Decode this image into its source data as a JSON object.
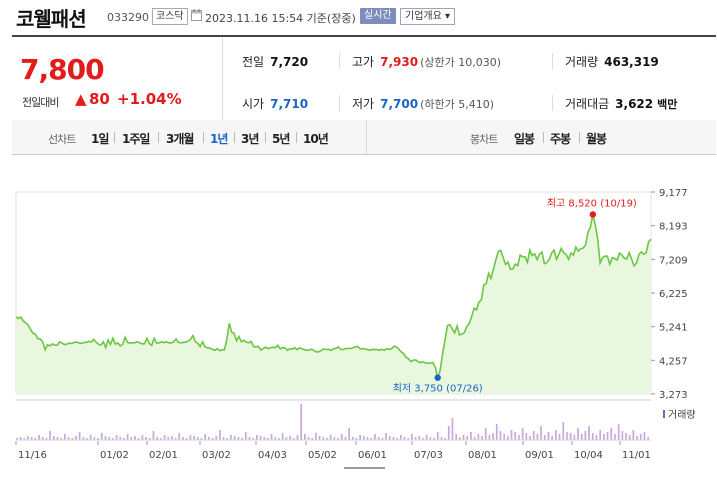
{
  "header": {
    "company_name": "코웰패션",
    "code": "033290",
    "market": "코스닥",
    "calendar_icon": "calendar-icon",
    "datetime": "2023.11.16 15:54 기준(장중)",
    "realtime_label": "실시간",
    "company_info_label": "기업개요 ▾"
  },
  "quote": {
    "price": "7,800",
    "change_label": "전일대비",
    "change_arrow": "▲",
    "change_value": "80",
    "change_rate": "+1.04%",
    "prev_close_label": "전일",
    "prev_close": "7,720",
    "high_label": "고가",
    "high": "7,930",
    "upper_limit": "(상한가 10,030)",
    "volume_label": "거래량",
    "volume": "463,319",
    "open_label": "시가",
    "open": "7,710",
    "low_label": "저가",
    "low": "7,700",
    "lower_limit": "(하한가 5,410)",
    "amount_label": "거래대금",
    "amount": "3,622",
    "amount_unit": "백만"
  },
  "periods": {
    "line_title": "선차트",
    "line_items": [
      "1일",
      "1주일",
      "3개월",
      "1년",
      "3년",
      "5년",
      "10년"
    ],
    "active": "1년",
    "candle_title": "봉차트",
    "candle_items": [
      "일봉",
      "주봉",
      "월봉"
    ]
  },
  "colors": {
    "up": "#e31b1b",
    "down": "#1a64c8",
    "line": "#6cc644",
    "area": "#e9f7df",
    "volume": "#c9a8d8"
  },
  "chart_data": {
    "type": "area",
    "y_ticks": [
      "9,177",
      "8,193",
      "7,209",
      "6,225",
      "5,241",
      "4,257",
      "3,273"
    ],
    "ylim": [
      3273,
      9177
    ],
    "x_ticks": [
      "11/16",
      "01/02",
      "02/01",
      "03/02",
      "04/03",
      "05/02",
      "06/01",
      "07/03",
      "08/01",
      "09/01",
      "10/04",
      "11/01"
    ],
    "max_label": "최고 8,520 (10/19)",
    "min_label": "최저 3,750 (07/26)",
    "volume_legend": "거래량",
    "values": [
      5530,
      5480,
      5520,
      5410,
      5350,
      5290,
      5160,
      5050,
      5020,
      4890,
      4880,
      4800,
      4570,
      4710,
      4680,
      4740,
      4700,
      4700,
      4800,
      4760,
      4720,
      4730,
      4760,
      4750,
      4780,
      4790,
      4770,
      4750,
      4780,
      4780,
      4810,
      4790,
      4870,
      4790,
      4730,
      4700,
      4800,
      4630,
      4850,
      4720,
      4900,
      4730,
      4770,
      4680,
      4720,
      4930,
      4780,
      4760,
      4770,
      4770,
      4800,
      4770,
      4740,
      4740,
      4900,
      4750,
      4690,
      4900,
      4760,
      4770,
      4800,
      4770,
      4800,
      4770,
      4770,
      4790,
      4880,
      4780,
      4770,
      4780,
      4790,
      4820,
      4870,
      4980,
      4800,
      4750,
      4660,
      4800,
      4650,
      4620,
      4620,
      4580,
      4550,
      4600,
      4540,
      4570,
      4560,
      4880,
      5340,
      5080,
      5040,
      4830,
      4950,
      4800,
      4840,
      4790,
      4770,
      4810,
      4660,
      4640,
      4670,
      4560,
      4600,
      4640,
      4600,
      4620,
      4640,
      4620,
      4700,
      4590,
      4630,
      4620,
      4550,
      4600,
      4580,
      4630,
      4570,
      4620,
      4590,
      4570,
      4550,
      4560,
      4580,
      4540,
      4500,
      4510,
      4550,
      4590,
      4570,
      4580,
      4550,
      4590,
      4610,
      4650,
      4580,
      4570,
      4600,
      4610,
      4600,
      4620,
      4650,
      4660,
      4590,
      4600,
      4590,
      4570,
      4550,
      4580,
      4570,
      4570,
      4550,
      4580,
      4550,
      4600,
      4580,
      4600,
      4670,
      4650,
      4580,
      4500,
      4450,
      4340,
      4300,
      4220,
      4260,
      4270,
      4210,
      4190,
      4220,
      4180,
      4170,
      4180,
      4190,
      4060,
      3750,
      3960,
      4450,
      4850,
      5270,
      5300,
      5180,
      5060,
      5260,
      5000,
      5020,
      5070,
      5250,
      5330,
      5530,
      5780,
      5730,
      5960,
      6020,
      6460,
      6500,
      6800,
      6650,
      6930,
      7200,
      7440,
      7470,
      7260,
      7060,
      7130,
      6920,
      6930,
      7070,
      7020,
      7330,
      7290,
      7280,
      7120,
      7480,
      7320,
      7370,
      7200,
      7360,
      7420,
      7080,
      7120,
      7200,
      7390,
      7480,
      7210,
      7360,
      7530,
      7400,
      7350,
      7210,
      7390,
      7330,
      7570,
      7450,
      7520,
      7540,
      7630,
      8000,
      8150,
      8520,
      8210,
      7800,
      7100,
      7260,
      7300,
      7300,
      7060,
      7260,
      7230,
      7190,
      7390,
      7340,
      7240,
      7220,
      7410,
      7220,
      7020,
      7100,
      7350,
      7430,
      7360,
      7400,
      7720,
      7800
    ]
  }
}
